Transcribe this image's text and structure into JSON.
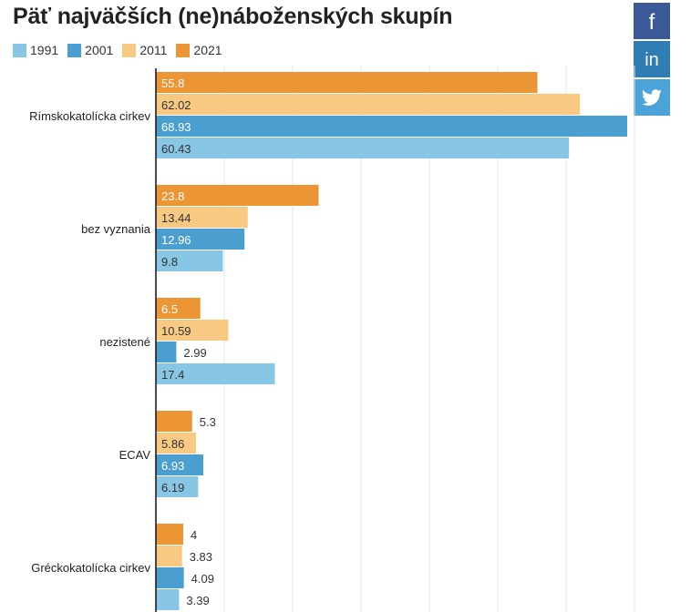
{
  "page": {
    "title": "Päť najväčších (ne)náboženských skupín"
  },
  "share": [
    {
      "network": "facebook",
      "glyph": "f",
      "icon": "facebook-icon",
      "color": "#3b5998"
    },
    {
      "network": "linkedin",
      "glyph": "in",
      "icon": "linkedin-icon",
      "color": "#2e7db5"
    },
    {
      "network": "twitter",
      "glyph": "",
      "icon": "twitter-icon",
      "color": "#4aa3d9"
    }
  ],
  "chart_data": {
    "type": "bar",
    "orientation": "horizontal",
    "title": "Päť najväčších (ne)náboženských skupín",
    "xlabel": "",
    "ylabel": "",
    "xlim": [
      0,
      70
    ],
    "grid": true,
    "legend_position": "top-left",
    "categories": [
      "Rímskokatolícka cirkev",
      "bez vyznania",
      "nezistené",
      "ECAV",
      "Gréckokatolícka cirkev"
    ],
    "series": [
      {
        "name": "2021",
        "color": "#ec9535",
        "values": [
          55.8,
          23.8,
          6.5,
          5.3,
          4
        ]
      },
      {
        "name": "2011",
        "color": "#f8c982",
        "values": [
          62.02,
          13.44,
          10.59,
          5.86,
          3.83
        ]
      },
      {
        "name": "2001",
        "color": "#4a9fd0",
        "values": [
          68.93,
          12.96,
          2.99,
          6.93,
          4.09
        ]
      },
      {
        "name": "1991",
        "color": "#88c6e6",
        "values": [
          60.43,
          9.8,
          17.4,
          6.19,
          3.39
        ]
      }
    ],
    "legend_order": [
      "1991",
      "2001",
      "2011",
      "2021"
    ]
  }
}
